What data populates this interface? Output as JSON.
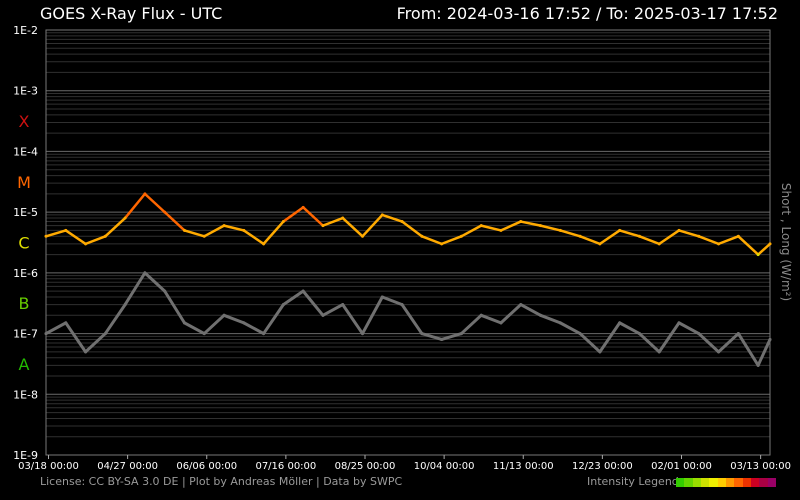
{
  "header": {
    "title": "GOES X-Ray Flux - UTC",
    "range": "From: 2024-03-16 17:52  /  To: 2025-03-17 17:52"
  },
  "footer": {
    "credits": "License: CC BY-SA 3.0 DE | Plot by Andreas Möller | Data by SWPC",
    "legend_label": "Intensity Legend",
    "legend_colors": [
      "#33cc00",
      "#66d400",
      "#99dd00",
      "#cce000",
      "#eeee00",
      "#ffcc00",
      "#ff9900",
      "#ff6600",
      "#ee3300",
      "#cc0022",
      "#aa0044",
      "#990066"
    ]
  },
  "chart_data": {
    "type": "line",
    "title": "GOES X-Ray Flux - UTC",
    "ylabel": "Short , Long (W/m²)",
    "yscale": "log",
    "ylim": [
      1e-09,
      0.01
    ],
    "y_ticks": [
      "1E-2",
      "1E-3",
      "1E-4",
      "1E-5",
      "1E-6",
      "1E-7",
      "1E-8",
      "1E-9"
    ],
    "flare_classes": [
      {
        "label": "X",
        "flux": 0.0001,
        "color": "#cc1111"
      },
      {
        "label": "M",
        "flux": 1e-05,
        "color": "#ff6600"
      },
      {
        "label": "C",
        "flux": 1e-06,
        "color": "#dddd00"
      },
      {
        "label": "B",
        "flux": 1e-07,
        "color": "#66cc00"
      },
      {
        "label": "A",
        "flux": 1e-08,
        "color": "#22bb00"
      }
    ],
    "x_range": [
      "2024-03-16 17:52",
      "2025-03-17 17:52"
    ],
    "x_ticks": [
      {
        "label": "03/18 00:00",
        "day": 1.26
      },
      {
        "label": "04/27 00:00",
        "day": 41.26
      },
      {
        "label": "06/06 00:00",
        "day": 81.26
      },
      {
        "label": "07/16 00:00",
        "day": 121.26
      },
      {
        "label": "08/25 00:00",
        "day": 161.26
      },
      {
        "label": "10/04 00:00",
        "day": 201.26
      },
      {
        "label": "11/13 00:00",
        "day": 241.26
      },
      {
        "label": "12/23 00:00",
        "day": 281.26
      },
      {
        "label": "02/01 00:00",
        "day": 321.26
      },
      {
        "label": "03/13 00:00",
        "day": 361.26
      }
    ],
    "grid": true,
    "series": [
      {
        "name": "Long",
        "color_scale": "intensity",
        "day": [
          0,
          10,
          20,
          30,
          40,
          50,
          60,
          70,
          80,
          90,
          100,
          110,
          120,
          130,
          140,
          150,
          160,
          170,
          180,
          190,
          200,
          210,
          220,
          230,
          240,
          250,
          260,
          270,
          280,
          290,
          300,
          310,
          320,
          330,
          340,
          350,
          360,
          366
        ],
        "flux": [
          4e-06,
          5e-06,
          3e-06,
          4e-06,
          8e-06,
          2e-05,
          1e-05,
          5e-06,
          4e-06,
          6e-06,
          5e-06,
          3e-06,
          7e-06,
          1.2e-05,
          6e-06,
          8e-06,
          4e-06,
          9e-06,
          7e-06,
          4e-06,
          3e-06,
          4e-06,
          6e-06,
          5e-06,
          7e-06,
          6e-06,
          5e-06,
          4e-06,
          3e-06,
          5e-06,
          4e-06,
          3e-06,
          5e-06,
          4e-06,
          3e-06,
          4e-06,
          2e-06,
          3e-06
        ]
      },
      {
        "name": "Short",
        "color": "#707070",
        "day": [
          0,
          10,
          20,
          30,
          40,
          50,
          60,
          70,
          80,
          90,
          100,
          110,
          120,
          130,
          140,
          150,
          160,
          170,
          180,
          190,
          200,
          210,
          220,
          230,
          240,
          250,
          260,
          270,
          280,
          290,
          300,
          310,
          320,
          330,
          340,
          350,
          360,
          366
        ],
        "flux": [
          1e-07,
          1.5e-07,
          5e-08,
          1e-07,
          3e-07,
          1e-06,
          5e-07,
          1.5e-07,
          1e-07,
          2e-07,
          1.5e-07,
          1e-07,
          3e-07,
          5e-07,
          2e-07,
          3e-07,
          1e-07,
          4e-07,
          3e-07,
          1e-07,
          8e-08,
          1e-07,
          2e-07,
          1.5e-07,
          3e-07,
          2e-07,
          1.5e-07,
          1e-07,
          5e-08,
          1.5e-07,
          1e-07,
          5e-08,
          1.5e-07,
          1e-07,
          5e-08,
          1e-07,
          3e-08,
          8e-08
        ]
      }
    ]
  }
}
